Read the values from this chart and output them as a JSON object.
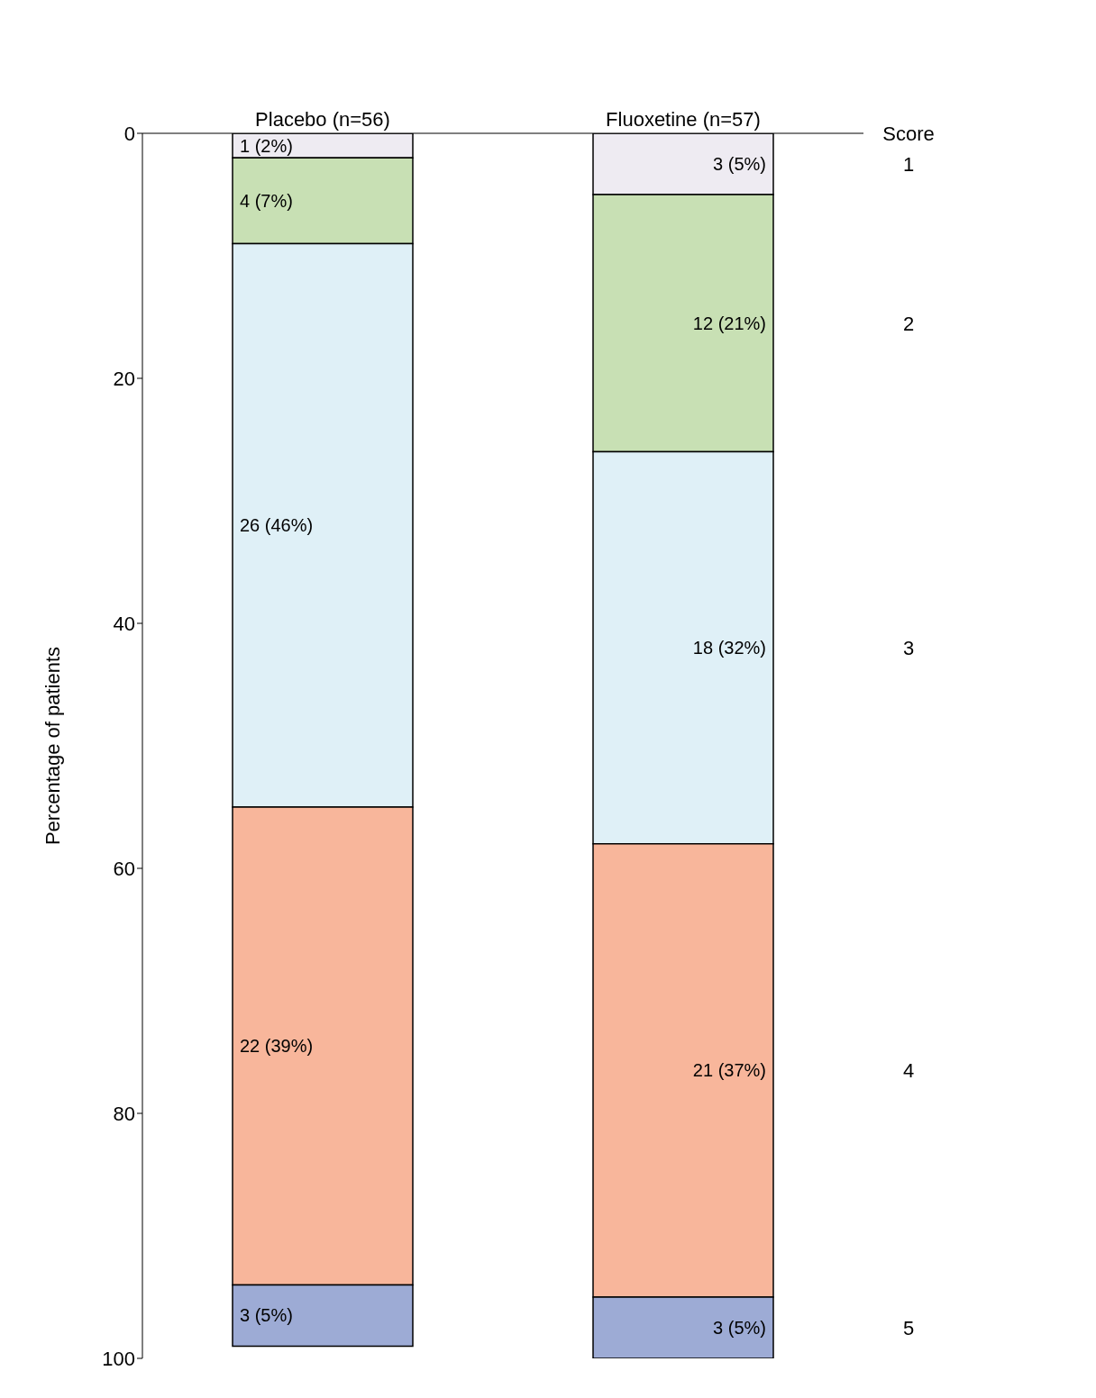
{
  "chart_data": {
    "type": "bar",
    "stacked": true,
    "categories": [
      "Placebo (n=56)",
      "Fluoxetine (n=57)"
    ],
    "ylabel": "Percentage of patients",
    "legend_title": "Score",
    "ylim": [
      100,
      0
    ],
    "yticks": [
      0,
      20,
      40,
      60,
      80,
      100
    ],
    "series": [
      {
        "name": "1",
        "color": "#eeebf2",
        "values": [
          2,
          5
        ],
        "value_labels": [
          "1 (2%)",
          "3 (5%)"
        ]
      },
      {
        "name": "2",
        "color": "#c8e0b4",
        "values": [
          7,
          21
        ],
        "value_labels": [
          "4 (7%)",
          "12 (21%)"
        ]
      },
      {
        "name": "3",
        "color": "#dff0f7",
        "values": [
          46,
          32
        ],
        "value_labels": [
          "26 (46%)",
          "18 (32%)"
        ]
      },
      {
        "name": "4",
        "color": "#f8b69b",
        "values": [
          39,
          37
        ],
        "value_labels": [
          "22 (39%)",
          "21 (37%)"
        ]
      },
      {
        "name": "5",
        "color": "#9dabd5",
        "values": [
          5,
          5
        ],
        "value_labels": [
          "3 (5%)",
          "3 (5%)"
        ]
      }
    ]
  }
}
